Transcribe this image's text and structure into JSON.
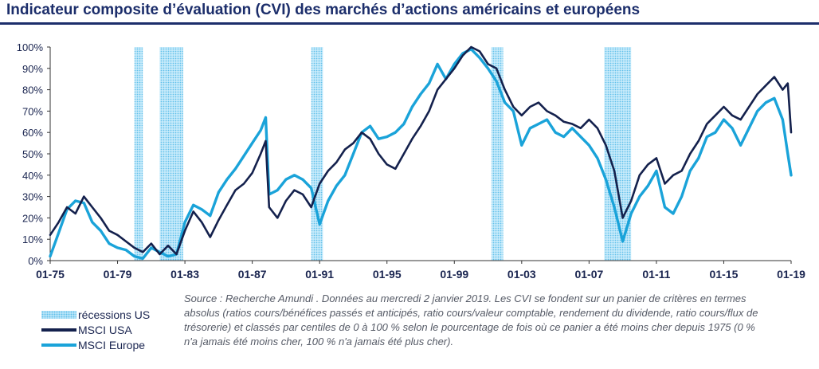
{
  "title": "Indicateur composite d’évaluation (CVI) des marchés d’actions américains et européens",
  "legend": {
    "recessions": "récessions US",
    "usa": "MSCI USA",
    "europe": "MSCI Europe"
  },
  "source": "Source : Recherche  Amundi . Données au mercredi 2 janvier 2019. Les CVI se fondent sur un panier de critères en termes absolus (ratios cours/bénéfices passés et anticipés, ratio cours/valeur comptable, rendement du dividende, ratio cours/flux de trésorerie) et classés par centiles de 0 à 100 % selon le pourcentage de fois où ce panier a été moins cher depuis 1975 (0 % n'a jamais été moins cher, 100 % n'a jamais été plus cher).",
  "colors": {
    "usa": "#14214d",
    "europe": "#1aa3d9",
    "recession_fill": "#c9ecfb",
    "recession_dot": "#62c0ea",
    "title": "#1c2e6b"
  },
  "chart_data": {
    "type": "line",
    "x_tick_labels": [
      "01-75",
      "01-79",
      "01-83",
      "01-87",
      "01-91",
      "01-95",
      "01-99",
      "01-03",
      "01-07",
      "01-11",
      "01-15",
      "01-19"
    ],
    "y_tick_labels": [
      "0%",
      "10%",
      "20%",
      "30%",
      "40%",
      "50%",
      "60%",
      "70%",
      "80%",
      "90%",
      "100%"
    ],
    "ylim": [
      0,
      100
    ],
    "xlim": [
      1975.0,
      2019.0
    ],
    "grid": false,
    "recessions": [
      [
        1980.0,
        1980.5
      ],
      [
        1981.5,
        1982.9
      ],
      [
        1990.5,
        1991.2
      ],
      [
        2001.2,
        2001.9
      ],
      [
        2007.9,
        2009.5
      ]
    ],
    "series": [
      {
        "name": "MSCI USA",
        "points": [
          [
            1975.0,
            12
          ],
          [
            1975.5,
            18
          ],
          [
            1976.0,
            25
          ],
          [
            1976.5,
            22
          ],
          [
            1977.0,
            30
          ],
          [
            1977.5,
            25
          ],
          [
            1978.0,
            20
          ],
          [
            1978.5,
            14
          ],
          [
            1979.0,
            12
          ],
          [
            1979.5,
            9
          ],
          [
            1980.0,
            6
          ],
          [
            1980.5,
            4
          ],
          [
            1981.0,
            8
          ],
          [
            1981.5,
            3
          ],
          [
            1982.0,
            7
          ],
          [
            1982.5,
            3
          ],
          [
            1983.0,
            14
          ],
          [
            1983.5,
            23
          ],
          [
            1984.0,
            18
          ],
          [
            1984.5,
            11
          ],
          [
            1985.0,
            19
          ],
          [
            1985.5,
            26
          ],
          [
            1986.0,
            33
          ],
          [
            1986.5,
            36
          ],
          [
            1987.0,
            41
          ],
          [
            1987.5,
            50
          ],
          [
            1987.8,
            56
          ],
          [
            1988.0,
            25
          ],
          [
            1988.5,
            20
          ],
          [
            1989.0,
            28
          ],
          [
            1989.5,
            33
          ],
          [
            1990.0,
            31
          ],
          [
            1990.5,
            25
          ],
          [
            1991.0,
            36
          ],
          [
            1991.5,
            42
          ],
          [
            1992.0,
            46
          ],
          [
            1992.5,
            52
          ],
          [
            1993.0,
            55
          ],
          [
            1993.5,
            60
          ],
          [
            1994.0,
            57
          ],
          [
            1994.5,
            50
          ],
          [
            1995.0,
            45
          ],
          [
            1995.5,
            43
          ],
          [
            1996.0,
            50
          ],
          [
            1996.5,
            57
          ],
          [
            1997.0,
            63
          ],
          [
            1997.5,
            70
          ],
          [
            1998.0,
            80
          ],
          [
            1998.5,
            85
          ],
          [
            1999.0,
            90
          ],
          [
            1999.5,
            96
          ],
          [
            2000.0,
            100
          ],
          [
            2000.5,
            98
          ],
          [
            2001.0,
            92
          ],
          [
            2001.5,
            90
          ],
          [
            2002.0,
            80
          ],
          [
            2002.5,
            72
          ],
          [
            2003.0,
            68
          ],
          [
            2003.5,
            72
          ],
          [
            2004.0,
            74
          ],
          [
            2004.5,
            70
          ],
          [
            2005.0,
            68
          ],
          [
            2005.5,
            65
          ],
          [
            2006.0,
            64
          ],
          [
            2006.5,
            62
          ],
          [
            2007.0,
            66
          ],
          [
            2007.5,
            62
          ],
          [
            2008.0,
            54
          ],
          [
            2008.5,
            42
          ],
          [
            2009.0,
            20
          ],
          [
            2009.5,
            28
          ],
          [
            2010.0,
            40
          ],
          [
            2010.5,
            45
          ],
          [
            2011.0,
            48
          ],
          [
            2011.5,
            36
          ],
          [
            2012.0,
            40
          ],
          [
            2012.5,
            42
          ],
          [
            2013.0,
            50
          ],
          [
            2013.5,
            56
          ],
          [
            2014.0,
            64
          ],
          [
            2014.5,
            68
          ],
          [
            2015.0,
            72
          ],
          [
            2015.5,
            68
          ],
          [
            2016.0,
            66
          ],
          [
            2016.5,
            72
          ],
          [
            2017.0,
            78
          ],
          [
            2017.5,
            82
          ],
          [
            2018.0,
            86
          ],
          [
            2018.5,
            80
          ],
          [
            2018.8,
            83
          ],
          [
            2019.0,
            60
          ]
        ]
      },
      {
        "name": "MSCI Europe",
        "points": [
          [
            1975.0,
            2
          ],
          [
            1975.5,
            13
          ],
          [
            1976.0,
            24
          ],
          [
            1976.5,
            28
          ],
          [
            1977.0,
            27
          ],
          [
            1977.5,
            18
          ],
          [
            1978.0,
            14
          ],
          [
            1978.5,
            8
          ],
          [
            1979.0,
            6
          ],
          [
            1979.5,
            5
          ],
          [
            1980.0,
            2
          ],
          [
            1980.5,
            1
          ],
          [
            1981.0,
            6
          ],
          [
            1981.5,
            4
          ],
          [
            1982.0,
            2
          ],
          [
            1982.5,
            3
          ],
          [
            1983.0,
            18
          ],
          [
            1983.5,
            26
          ],
          [
            1984.0,
            24
          ],
          [
            1984.5,
            21
          ],
          [
            1985.0,
            32
          ],
          [
            1985.5,
            38
          ],
          [
            1986.0,
            43
          ],
          [
            1986.5,
            49
          ],
          [
            1987.0,
            55
          ],
          [
            1987.5,
            61
          ],
          [
            1987.8,
            67
          ],
          [
            1988.0,
            31
          ],
          [
            1988.5,
            33
          ],
          [
            1989.0,
            38
          ],
          [
            1989.5,
            40
          ],
          [
            1990.0,
            38
          ],
          [
            1990.5,
            34
          ],
          [
            1991.0,
            17
          ],
          [
            1991.5,
            28
          ],
          [
            1992.0,
            35
          ],
          [
            1992.5,
            40
          ],
          [
            1993.0,
            50
          ],
          [
            1993.5,
            60
          ],
          [
            1994.0,
            63
          ],
          [
            1994.5,
            57
          ],
          [
            1995.0,
            58
          ],
          [
            1995.5,
            60
          ],
          [
            1996.0,
            64
          ],
          [
            1996.5,
            72
          ],
          [
            1997.0,
            78
          ],
          [
            1997.5,
            83
          ],
          [
            1998.0,
            92
          ],
          [
            1998.5,
            85
          ],
          [
            1999.0,
            92
          ],
          [
            1999.5,
            97
          ],
          [
            2000.0,
            99
          ],
          [
            2000.5,
            95
          ],
          [
            2001.0,
            90
          ],
          [
            2001.5,
            84
          ],
          [
            2002.0,
            74
          ],
          [
            2002.5,
            70
          ],
          [
            2003.0,
            54
          ],
          [
            2003.5,
            62
          ],
          [
            2004.0,
            64
          ],
          [
            2004.5,
            66
          ],
          [
            2005.0,
            60
          ],
          [
            2005.5,
            58
          ],
          [
            2006.0,
            62
          ],
          [
            2006.5,
            58
          ],
          [
            2007.0,
            54
          ],
          [
            2007.5,
            48
          ],
          [
            2008.0,
            38
          ],
          [
            2008.5,
            25
          ],
          [
            2009.0,
            9
          ],
          [
            2009.5,
            22
          ],
          [
            2010.0,
            30
          ],
          [
            2010.5,
            35
          ],
          [
            2011.0,
            42
          ],
          [
            2011.5,
            25
          ],
          [
            2012.0,
            22
          ],
          [
            2012.5,
            30
          ],
          [
            2013.0,
            42
          ],
          [
            2013.5,
            48
          ],
          [
            2014.0,
            58
          ],
          [
            2014.5,
            60
          ],
          [
            2015.0,
            66
          ],
          [
            2015.5,
            62
          ],
          [
            2016.0,
            54
          ],
          [
            2016.5,
            62
          ],
          [
            2017.0,
            70
          ],
          [
            2017.5,
            74
          ],
          [
            2018.0,
            76
          ],
          [
            2018.5,
            66
          ],
          [
            2018.8,
            50
          ],
          [
            2019.0,
            40
          ]
        ]
      }
    ]
  }
}
